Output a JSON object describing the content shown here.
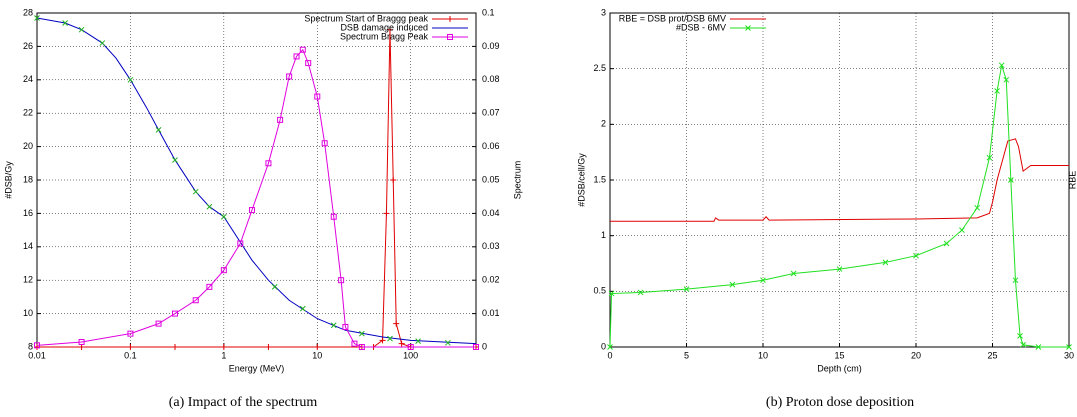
{
  "chart_data": [
    {
      "type": "line",
      "xscale": "log",
      "caption": "(a) Impact of the spectrum",
      "xlabel": "Energy (MeV)",
      "ylabel": "#DSB/Gy",
      "y2label": "Spectrum",
      "xlim": [
        0.01,
        500
      ],
      "xticks": [
        0.01,
        0.1,
        1,
        10,
        100
      ],
      "ylim": [
        8,
        28
      ],
      "yticks": [
        8,
        10,
        12,
        14,
        16,
        18,
        20,
        22,
        24,
        26,
        28
      ],
      "y2lim": [
        0,
        0.1
      ],
      "y2ticks": [
        0,
        0.01,
        0.02,
        0.03,
        0.04,
        0.05,
        0.06,
        0.07,
        0.08,
        0.09,
        0.1
      ],
      "grid": true,
      "legend": "top-right",
      "series": [
        {
          "name": "Spectrum Start of Braggg peak",
          "color": "#e00000",
          "marker": "plus",
          "axis": "y2",
          "x": [
            0.01,
            0.03,
            0.1,
            0.3,
            1,
            3,
            10,
            30,
            40,
            50,
            55,
            60,
            65,
            70,
            80,
            100,
            500
          ],
          "values": [
            0,
            0,
            0,
            0,
            0,
            0,
            0,
            0,
            0,
            0.002,
            0.04,
            0.095,
            0.05,
            0.007,
            0.001,
            0,
            0
          ]
        },
        {
          "name": "DSB damage induced",
          "color": "#0000c0",
          "marker": "none",
          "x": [
            0.01,
            0.02,
            0.03,
            0.05,
            0.07,
            0.1,
            0.15,
            0.2,
            0.3,
            0.5,
            0.7,
            1,
            2,
            3,
            5,
            10,
            20,
            50,
            100,
            500
          ],
          "values": [
            27.7,
            27.4,
            27.0,
            26.2,
            25.3,
            24.0,
            22.3,
            21.0,
            19.2,
            17.3,
            16.4,
            15.8,
            13.2,
            12.0,
            10.8,
            9.7,
            9.0,
            8.6,
            8.4,
            8.2
          ]
        },
        {
          "name": "Spectrum Bragg Peak",
          "color": "#e000e0",
          "marker": "square",
          "axis": "y2",
          "x": [
            0.01,
            0.03,
            0.1,
            0.2,
            0.3,
            0.5,
            0.7,
            1,
            1.5,
            2,
            3,
            4,
            5,
            6,
            7,
            8,
            10,
            12,
            15,
            18,
            20,
            25,
            30,
            100,
            500
          ],
          "values": [
            0.0005,
            0.0015,
            0.004,
            0.007,
            0.01,
            0.014,
            0.018,
            0.023,
            0.031,
            0.041,
            0.055,
            0.068,
            0.081,
            0.087,
            0.089,
            0.085,
            0.075,
            0.061,
            0.039,
            0.02,
            0.006,
            0.001,
            0,
            0,
            0
          ]
        },
        {
          "color": "#20b020",
          "marker": "x",
          "noline": true,
          "x": [
            0.01,
            0.02,
            0.03,
            0.05,
            0.1,
            0.2,
            0.3,
            0.5,
            0.7,
            1,
            3.5,
            7,
            15,
            30,
            60,
            120,
            250
          ],
          "values": [
            27.7,
            27.4,
            27.0,
            26.2,
            24.0,
            21.0,
            19.2,
            17.3,
            16.4,
            15.8,
            11.6,
            10.3,
            9.3,
            8.8,
            8.5,
            8.35,
            8.25
          ]
        }
      ]
    },
    {
      "type": "line",
      "caption": "(b) Proton dose deposition",
      "xlabel": "Depth (cm)",
      "ylabel": "#DSB/cell/Gy",
      "y2label": "RBE",
      "xlim": [
        0,
        30
      ],
      "xticks": [
        0,
        5,
        10,
        15,
        20,
        25,
        30
      ],
      "ylim": [
        0,
        3
      ],
      "yticks": [
        0,
        0.5,
        1,
        1.5,
        2,
        2.5,
        3
      ],
      "grid": true,
      "legend": "top-left",
      "series": [
        {
          "name": "RBE = DSB prot/DSB 6MV",
          "color": "#e00000",
          "marker": "none",
          "x": [
            0,
            6.8,
            6.9,
            7.1,
            10,
            10.2,
            10.4,
            20,
            24,
            24.8,
            25,
            25.3,
            25.6,
            26,
            26.5,
            26.7,
            27,
            27.5,
            30
          ],
          "values": [
            1.13,
            1.13,
            1.16,
            1.14,
            1.14,
            1.17,
            1.14,
            1.15,
            1.16,
            1.2,
            1.3,
            1.5,
            1.65,
            1.85,
            1.87,
            1.8,
            1.58,
            1.63,
            1.63
          ]
        },
        {
          "name": "#DSB - 6MV",
          "color": "#20e020",
          "marker": "x",
          "x": [
            0,
            0.1,
            2,
            5,
            8,
            10,
            12,
            15,
            18,
            20,
            22,
            23,
            24,
            24.8,
            25.3,
            25.6,
            25.9,
            26.2,
            26.5,
            26.8,
            27,
            28,
            30
          ],
          "values": [
            0,
            0.48,
            0.49,
            0.52,
            0.56,
            0.6,
            0.66,
            0.7,
            0.76,
            0.82,
            0.93,
            1.05,
            1.25,
            1.7,
            2.3,
            2.53,
            2.4,
            1.5,
            0.6,
            0.1,
            0.02,
            0,
            0
          ]
        }
      ]
    }
  ]
}
